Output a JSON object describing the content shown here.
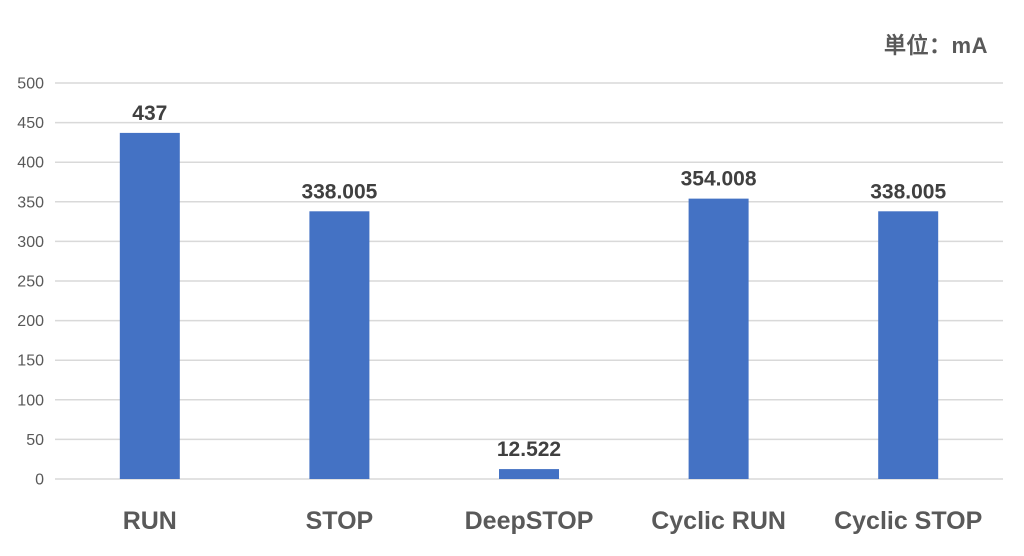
{
  "chart_data": {
    "type": "bar",
    "title": "",
    "unit_label": "単位：mA",
    "categories": [
      "RUN",
      "STOP",
      "DeepSTOP",
      "Cyclic RUN",
      "Cyclic STOP"
    ],
    "values": [
      437,
      338.005,
      12.522,
      354.008,
      338.005
    ],
    "value_labels": [
      "437",
      "338.005",
      "12.522",
      "354.008",
      "338.005"
    ],
    "series": [
      {
        "name": "current_mA",
        "values": [
          437,
          338.005,
          12.522,
          354.008,
          338.005
        ]
      }
    ],
    "xlabel": "",
    "ylabel": "",
    "ylim": [
      0,
      500
    ],
    "ytick_step": 50,
    "ytick_labels": [
      "0",
      "50",
      "100",
      "150",
      "200",
      "250",
      "300",
      "350",
      "400",
      "450",
      "500"
    ],
    "grid": true,
    "legend_position": "none",
    "colors": {
      "bar": "#4472C4",
      "gridline": "#D9D9D9",
      "value_label": "#404040",
      "axis_tick_label": "#595959",
      "category_label": "#595959",
      "background": "#FFFFFF"
    }
  }
}
